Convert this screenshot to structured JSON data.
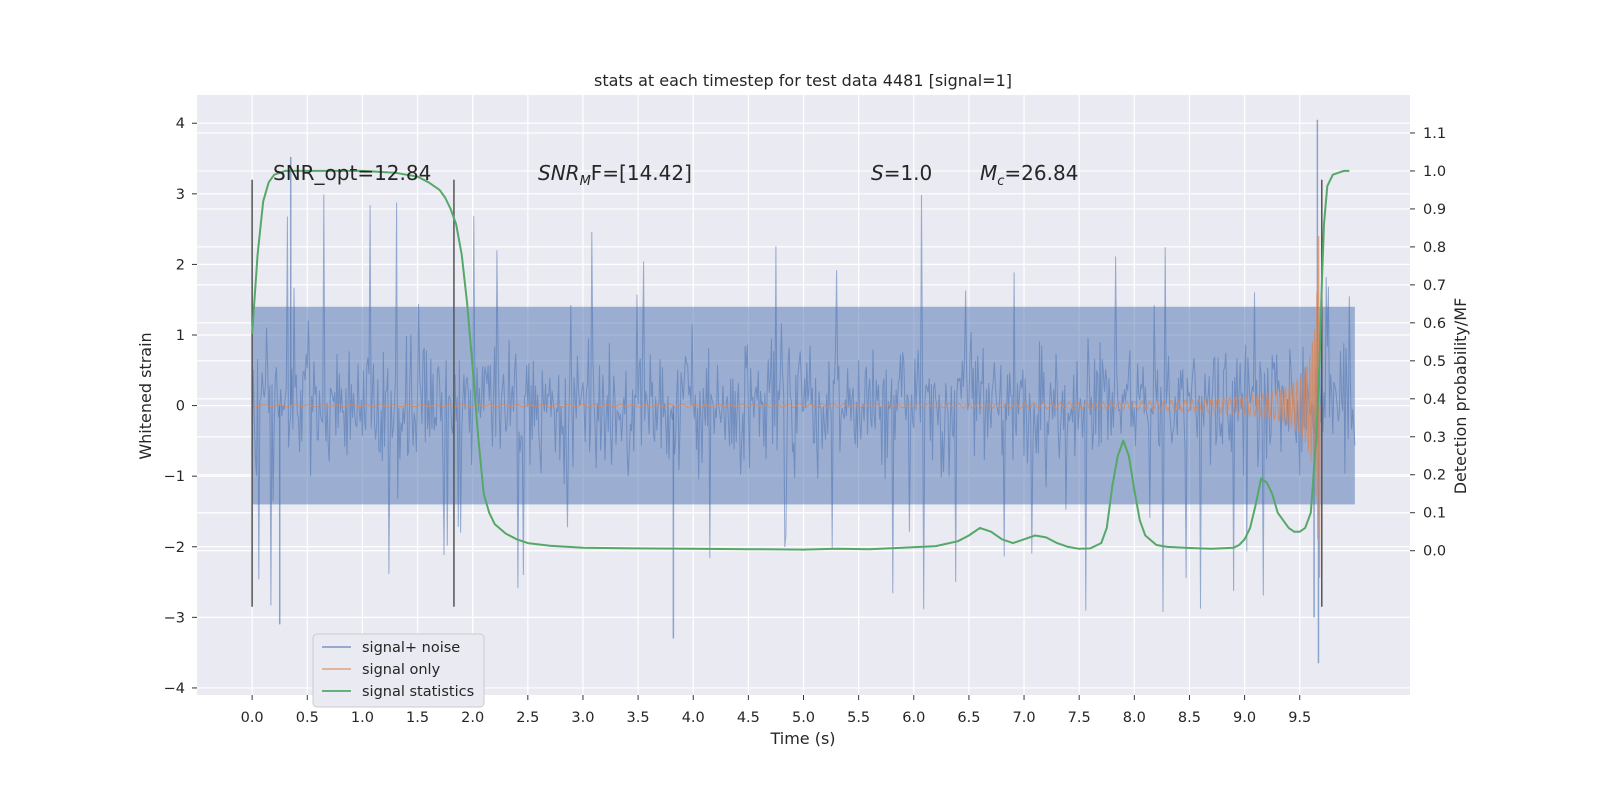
{
  "chart_data": {
    "type": "line",
    "title": "stats at each timestep for test data 4481 [signal=1]",
    "xlabel": "Time (s)",
    "ylabel": "Whitened strain",
    "ylabel_right": "Detection probability/MF",
    "xlim": [
      -0.5,
      10.5
    ],
    "ylim": [
      -4.1,
      4.4
    ],
    "ylim_right": [
      -0.38,
      1.2
    ],
    "xticks": [
      0.0,
      0.5,
      1.0,
      1.5,
      2.0,
      2.5,
      3.0,
      3.5,
      4.0,
      4.5,
      5.0,
      5.5,
      6.0,
      6.5,
      7.0,
      7.5,
      8.0,
      8.5,
      9.0,
      9.5
    ],
    "xtick_labels": [
      "0.0",
      "0.5",
      "1.0",
      "1.5",
      "2.0",
      "2.5",
      "3.0",
      "3.5",
      "4.0",
      "4.5",
      "5.0",
      "5.5",
      "6.0",
      "6.5",
      "7.0",
      "7.5",
      "8.0",
      "8.5",
      "9.0",
      "9.5"
    ],
    "yticks": [
      -4,
      -3,
      -2,
      -1,
      0,
      1,
      2,
      3,
      4
    ],
    "ytick_labels": [
      "−4",
      "−3",
      "−2",
      "−1",
      "0",
      "1",
      "2",
      "3",
      "4"
    ],
    "yticks_right": [
      0.0,
      0.1,
      0.2,
      0.3,
      0.4,
      0.5,
      0.6,
      0.7,
      0.8,
      0.9,
      1.0,
      1.1
    ],
    "ytick_labels_right": [
      "0.0",
      "0.1",
      "0.2",
      "0.3",
      "0.4",
      "0.5",
      "0.6",
      "0.7",
      "0.8",
      "0.9",
      "1.0",
      "1.1"
    ],
    "grid": true,
    "legend_position": "lower-left",
    "legend": [
      "signal+ noise",
      "signal only",
      "signal statistics"
    ],
    "colors": {
      "plot_bg": "#eaeaf2",
      "grid": "#ffffff",
      "noise": "#4c72b0",
      "signal": "#dd8452",
      "stats": "#55a868",
      "vline": "#555555"
    },
    "annotations": {
      "snr_opt": "SNR_opt=12.84",
      "snr_mf_base": "SNR",
      "snr_mf_sub": "M",
      "snr_mf_rest": "F=[14.42]",
      "s_italic": "S",
      "s_rest": "=1.0",
      "mc_base": "M",
      "mc_sub": "c",
      "mc_rest": "=26.84"
    },
    "vertical_lines_x": [
      0.0,
      1.83,
      9.7
    ],
    "vertical_lines_range": [
      -2.85,
      3.2
    ],
    "series": [
      {
        "name": "signal+ noise",
        "type": "strain",
        "x_range": [
          0.0,
          10.0
        ],
        "typical_amplitude": 1.4,
        "max": 4.05,
        "min": -3.65
      },
      {
        "name": "signal only",
        "type": "chirp",
        "x_range": [
          0.0,
          9.7
        ],
        "peak_amplitude": 2.6,
        "peak_x": 9.68
      },
      {
        "name": "signal statistics",
        "axis": "right",
        "x": [
          0.0,
          0.05,
          0.1,
          0.15,
          0.2,
          0.3,
          0.5,
          0.8,
          1.0,
          1.3,
          1.5,
          1.6,
          1.7,
          1.75,
          1.8,
          1.85,
          1.9,
          1.95,
          2.0,
          2.05,
          2.1,
          2.15,
          2.2,
          2.3,
          2.4,
          2.5,
          2.7,
          3.0,
          3.5,
          4.0,
          4.5,
          5.0,
          5.3,
          5.6,
          5.9,
          6.2,
          6.4,
          6.5,
          6.6,
          6.7,
          6.8,
          6.9,
          7.0,
          7.1,
          7.2,
          7.3,
          7.4,
          7.5,
          7.6,
          7.7,
          7.75,
          7.8,
          7.85,
          7.9,
          7.95,
          8.0,
          8.05,
          8.1,
          8.2,
          8.3,
          8.5,
          8.7,
          8.9,
          8.95,
          9.0,
          9.05,
          9.1,
          9.15,
          9.2,
          9.25,
          9.3,
          9.4,
          9.45,
          9.5,
          9.55,
          9.6,
          9.62,
          9.65,
          9.68,
          9.7,
          9.72,
          9.75,
          9.8,
          9.9,
          9.95
        ],
        "values": [
          0.57,
          0.78,
          0.92,
          0.97,
          0.99,
          1.0,
          1.0,
          1.0,
          1.0,
          0.995,
          0.985,
          0.97,
          0.95,
          0.93,
          0.9,
          0.86,
          0.78,
          0.65,
          0.48,
          0.3,
          0.15,
          0.1,
          0.07,
          0.045,
          0.03,
          0.02,
          0.013,
          0.008,
          0.006,
          0.005,
          0.004,
          0.003,
          0.005,
          0.004,
          0.008,
          0.012,
          0.025,
          0.04,
          0.06,
          0.05,
          0.03,
          0.02,
          0.03,
          0.04,
          0.035,
          0.02,
          0.01,
          0.005,
          0.006,
          0.02,
          0.06,
          0.17,
          0.25,
          0.29,
          0.25,
          0.16,
          0.08,
          0.04,
          0.015,
          0.01,
          0.007,
          0.005,
          0.008,
          0.015,
          0.03,
          0.06,
          0.12,
          0.19,
          0.18,
          0.15,
          0.1,
          0.06,
          0.05,
          0.05,
          0.06,
          0.1,
          0.18,
          0.3,
          0.5,
          0.7,
          0.86,
          0.96,
          0.99,
          1.0,
          1.0
        ]
      }
    ]
  }
}
